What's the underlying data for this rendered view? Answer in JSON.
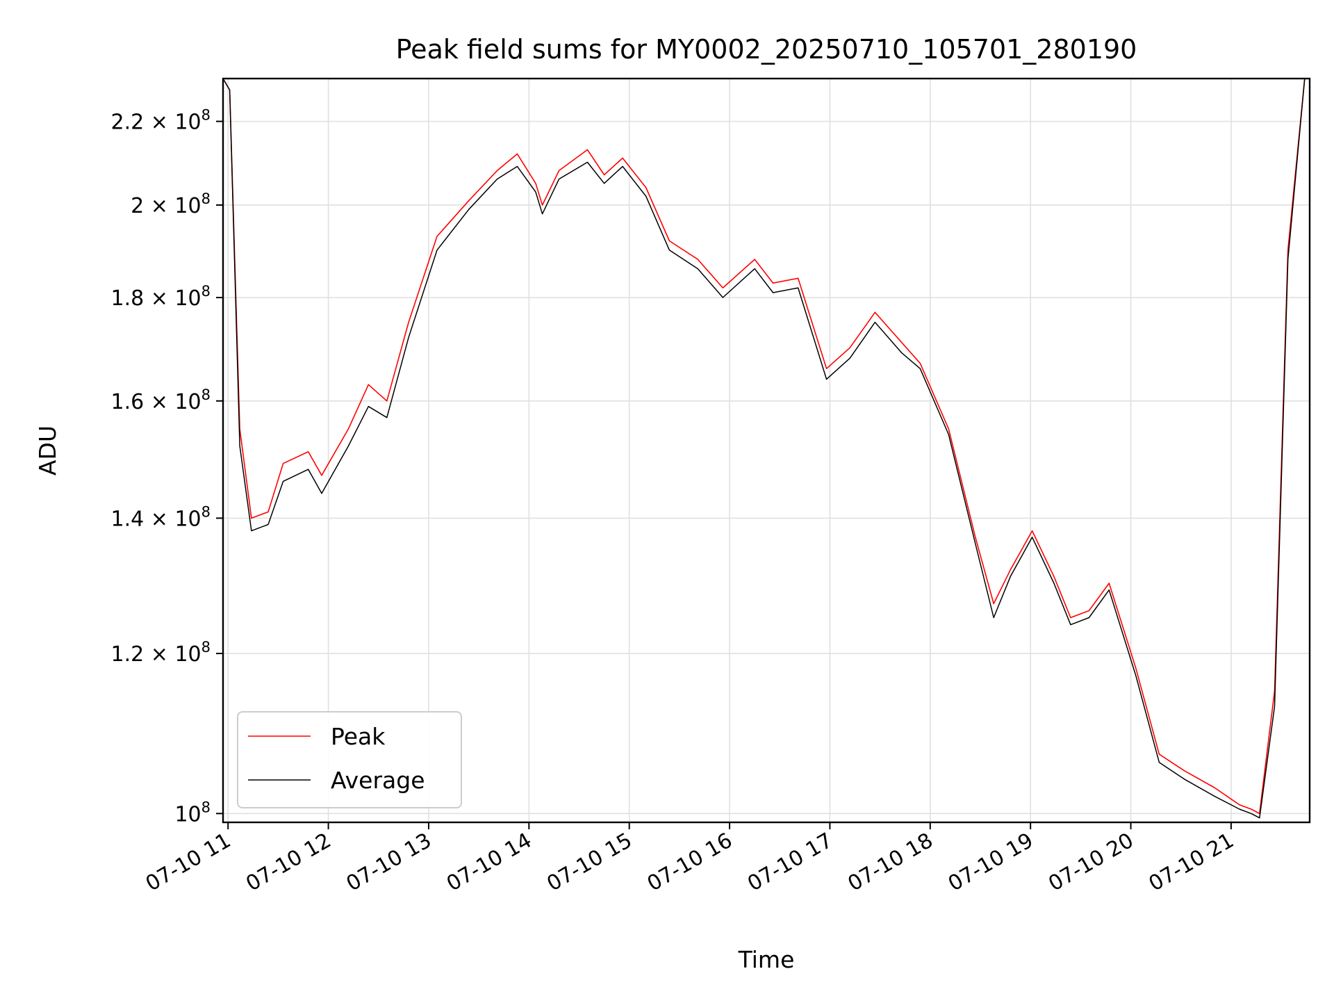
{
  "chart_data": {
    "type": "line",
    "title": "Peak field sums for MY0002_20250710_105701_280190",
    "xlabel": "Time",
    "ylabel": "ADU",
    "y_scale": "log",
    "grid": true,
    "legend_position": "lower-left",
    "xlim": [
      "2025-07-10T10:57",
      "2025-07-10T21:47"
    ],
    "ylim": [
      99000000,
      231000000
    ],
    "x_ticks": [
      {
        "value": "2025-07-10T11:00",
        "label": "07-10 11"
      },
      {
        "value": "2025-07-10T12:00",
        "label": "07-10 12"
      },
      {
        "value": "2025-07-10T13:00",
        "label": "07-10 13"
      },
      {
        "value": "2025-07-10T14:00",
        "label": "07-10 14"
      },
      {
        "value": "2025-07-10T15:00",
        "label": "07-10 15"
      },
      {
        "value": "2025-07-10T16:00",
        "label": "07-10 16"
      },
      {
        "value": "2025-07-10T17:00",
        "label": "07-10 17"
      },
      {
        "value": "2025-07-10T18:00",
        "label": "07-10 18"
      },
      {
        "value": "2025-07-10T19:00",
        "label": "07-10 19"
      },
      {
        "value": "2025-07-10T20:00",
        "label": "07-10 20"
      },
      {
        "value": "2025-07-10T21:00",
        "label": "07-10 21"
      }
    ],
    "y_ticks": [
      {
        "value": 100000000,
        "mantissa": "",
        "exponent": "8"
      },
      {
        "value": 120000000,
        "mantissa": "1.2",
        "exponent": "8"
      },
      {
        "value": 140000000,
        "mantissa": "1.4",
        "exponent": "8"
      },
      {
        "value": 160000000,
        "mantissa": "1.6",
        "exponent": "8"
      },
      {
        "value": 180000000,
        "mantissa": "1.8",
        "exponent": "8"
      },
      {
        "value": 200000000,
        "mantissa": "2",
        "exponent": "8"
      },
      {
        "value": 220000000,
        "mantissa": "2.2",
        "exponent": "8"
      }
    ],
    "series": [
      {
        "name": "Peak",
        "color": "#ff0000",
        "points": [
          [
            "2025-07-10T10:57",
            231000000
          ],
          [
            "2025-07-10T11:01",
            228000000
          ],
          [
            "2025-07-10T11:07",
            155000000
          ],
          [
            "2025-07-10T11:14",
            140000000
          ],
          [
            "2025-07-10T11:24",
            141000000
          ],
          [
            "2025-07-10T11:33",
            149000000
          ],
          [
            "2025-07-10T11:48",
            151000000
          ],
          [
            "2025-07-10T11:56",
            147000000
          ],
          [
            "2025-07-10T12:12",
            155000000
          ],
          [
            "2025-07-10T12:24",
            163000000
          ],
          [
            "2025-07-10T12:35",
            160000000
          ],
          [
            "2025-07-10T12:48",
            175000000
          ],
          [
            "2025-07-10T13:05",
            193000000
          ],
          [
            "2025-07-10T13:24",
            201000000
          ],
          [
            "2025-07-10T13:41",
            208000000
          ],
          [
            "2025-07-10T13:53",
            212000000
          ],
          [
            "2025-07-10T14:04",
            205000000
          ],
          [
            "2025-07-10T14:08",
            200000000
          ],
          [
            "2025-07-10T14:18",
            208000000
          ],
          [
            "2025-07-10T14:35",
            213000000
          ],
          [
            "2025-07-10T14:45",
            207000000
          ],
          [
            "2025-07-10T14:56",
            211000000
          ],
          [
            "2025-07-10T15:10",
            204000000
          ],
          [
            "2025-07-10T15:24",
            192000000
          ],
          [
            "2025-07-10T15:41",
            188000000
          ],
          [
            "2025-07-10T15:56",
            182000000
          ],
          [
            "2025-07-10T16:15",
            188000000
          ],
          [
            "2025-07-10T16:26",
            183000000
          ],
          [
            "2025-07-10T16:41",
            184000000
          ],
          [
            "2025-07-10T16:58",
            166000000
          ],
          [
            "2025-07-10T17:12",
            170000000
          ],
          [
            "2025-07-10T17:27",
            177000000
          ],
          [
            "2025-07-10T17:43",
            171000000
          ],
          [
            "2025-07-10T17:54",
            167000000
          ],
          [
            "2025-07-10T18:11",
            155000000
          ],
          [
            "2025-07-10T18:27",
            137000000
          ],
          [
            "2025-07-10T18:38",
            127000000
          ],
          [
            "2025-07-10T18:48",
            132000000
          ],
          [
            "2025-07-10T19:01",
            138000000
          ],
          [
            "2025-07-10T19:14",
            131000000
          ],
          [
            "2025-07-10T19:24",
            125000000
          ],
          [
            "2025-07-10T19:35",
            126000000
          ],
          [
            "2025-07-10T19:47",
            130000000
          ],
          [
            "2025-07-10T20:03",
            118000000
          ],
          [
            "2025-07-10T20:17",
            107000000
          ],
          [
            "2025-07-10T20:32",
            105000000
          ],
          [
            "2025-07-10T20:50",
            103000000
          ],
          [
            "2025-07-10T21:05",
            101000000
          ],
          [
            "2025-07-10T21:12",
            100500000
          ],
          [
            "2025-07-10T21:17",
            100000000
          ],
          [
            "2025-07-10T21:26",
            115000000
          ],
          [
            "2025-07-10T21:34",
            190000000
          ],
          [
            "2025-07-10T21:44",
            231000000
          ]
        ]
      },
      {
        "name": "Average",
        "color": "#000000",
        "points": [
          [
            "2025-07-10T10:57",
            231000000
          ],
          [
            "2025-07-10T11:01",
            228000000
          ],
          [
            "2025-07-10T11:07",
            152000000
          ],
          [
            "2025-07-10T11:14",
            138000000
          ],
          [
            "2025-07-10T11:24",
            139000000
          ],
          [
            "2025-07-10T11:33",
            146000000
          ],
          [
            "2025-07-10T11:48",
            148000000
          ],
          [
            "2025-07-10T11:56",
            144000000
          ],
          [
            "2025-07-10T12:12",
            152000000
          ],
          [
            "2025-07-10T12:24",
            159000000
          ],
          [
            "2025-07-10T12:35",
            157000000
          ],
          [
            "2025-07-10T12:48",
            172000000
          ],
          [
            "2025-07-10T13:05",
            190000000
          ],
          [
            "2025-07-10T13:24",
            199000000
          ],
          [
            "2025-07-10T13:41",
            206000000
          ],
          [
            "2025-07-10T13:53",
            209000000
          ],
          [
            "2025-07-10T14:04",
            203000000
          ],
          [
            "2025-07-10T14:08",
            198000000
          ],
          [
            "2025-07-10T14:18",
            206000000
          ],
          [
            "2025-07-10T14:35",
            210000000
          ],
          [
            "2025-07-10T14:45",
            205000000
          ],
          [
            "2025-07-10T14:56",
            209000000
          ],
          [
            "2025-07-10T15:10",
            202000000
          ],
          [
            "2025-07-10T15:24",
            190000000
          ],
          [
            "2025-07-10T15:41",
            186000000
          ],
          [
            "2025-07-10T15:56",
            180000000
          ],
          [
            "2025-07-10T16:15",
            186000000
          ],
          [
            "2025-07-10T16:26",
            181000000
          ],
          [
            "2025-07-10T16:41",
            182000000
          ],
          [
            "2025-07-10T16:58",
            164000000
          ],
          [
            "2025-07-10T17:12",
            168000000
          ],
          [
            "2025-07-10T17:27",
            175000000
          ],
          [
            "2025-07-10T17:43",
            169000000
          ],
          [
            "2025-07-10T17:54",
            166000000
          ],
          [
            "2025-07-10T18:11",
            154000000
          ],
          [
            "2025-07-10T18:27",
            136000000
          ],
          [
            "2025-07-10T18:38",
            125000000
          ],
          [
            "2025-07-10T18:48",
            131000000
          ],
          [
            "2025-07-10T19:01",
            137000000
          ],
          [
            "2025-07-10T19:14",
            130000000
          ],
          [
            "2025-07-10T19:24",
            124000000
          ],
          [
            "2025-07-10T19:35",
            125000000
          ],
          [
            "2025-07-10T19:47",
            129000000
          ],
          [
            "2025-07-10T20:03",
            117000000
          ],
          [
            "2025-07-10T20:17",
            106000000
          ],
          [
            "2025-07-10T20:32",
            104000000
          ],
          [
            "2025-07-10T20:50",
            102000000
          ],
          [
            "2025-07-10T21:05",
            100500000
          ],
          [
            "2025-07-10T21:12",
            100000000
          ],
          [
            "2025-07-10T21:17",
            99500000
          ],
          [
            "2025-07-10T21:26",
            113000000
          ],
          [
            "2025-07-10T21:34",
            188000000
          ],
          [
            "2025-07-10T21:44",
            231000000
          ]
        ]
      }
    ]
  }
}
